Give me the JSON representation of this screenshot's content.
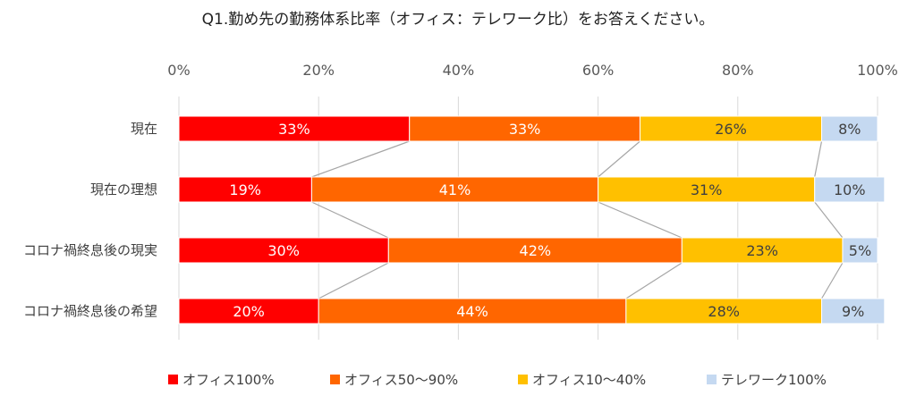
{
  "chart_data": {
    "type": "bar",
    "orientation": "horizontal",
    "stacked": true,
    "normalized": true,
    "title": "Q1.勤め先の勤務体系比率（オフィス：テレワーク比）をお答えください。",
    "xlim": [
      0,
      100
    ],
    "x_ticks": [
      "0%",
      "20%",
      "40%",
      "60%",
      "80%",
      "100%"
    ],
    "categories": [
      "現在",
      "現在の理想",
      "コロナ禍終息後の現実",
      "コロナ禍終息後の希望"
    ],
    "series": [
      {
        "name": "オフィス100%",
        "color": "#ff0000",
        "values": [
          33,
          19,
          30,
          20
        ]
      },
      {
        "name": "オフィス50～90%",
        "color": "#ff6600",
        "values": [
          33,
          41,
          42,
          44
        ]
      },
      {
        "name": "オフィス10～40%",
        "color": "#ffc000",
        "values": [
          26,
          31,
          23,
          28
        ]
      },
      {
        "name": "テレワーク100%",
        "color": "#c5d9f1",
        "values": [
          8,
          10,
          5,
          9
        ]
      }
    ],
    "data_labels": [
      [
        "33%",
        "19%",
        "30%",
        "20%"
      ],
      [
        "33%",
        "41%",
        "42%",
        "44%"
      ],
      [
        "26%",
        "31%",
        "23%",
        "28%"
      ],
      [
        "8%",
        "10%",
        "5%",
        "9%"
      ]
    ],
    "label_colors": [
      "#ffffff",
      "#ffffff",
      "#404040",
      "#404040"
    ],
    "grid": true,
    "series_lines": true,
    "legend_position": "bottom"
  }
}
